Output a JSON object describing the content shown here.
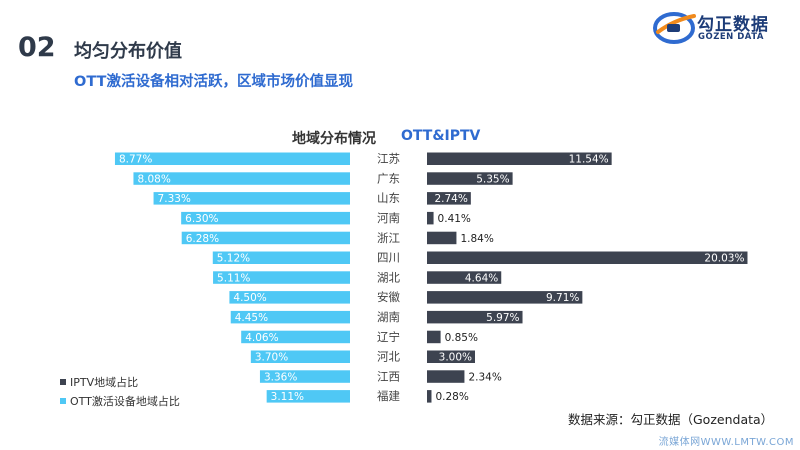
{
  "header": {
    "section_number": "02",
    "section_title": "均匀分布价值",
    "subtitle": "OTT激活设备相对活跃，区域市场价值显现"
  },
  "logo": {
    "name": "勾正数据",
    "sub": "GOZEN DATA"
  },
  "source": "数据来源：勾正数据（Gozendata）",
  "watermark": "流媒体网WWW.LMTW.COM",
  "colors": {
    "ott": "#4fc8f5",
    "iptv": "#3d4350",
    "label_text": "#ffffff"
  },
  "chart_data": {
    "type": "bar",
    "title": "地域分布情况",
    "title_tag": "OTT&IPTV",
    "categories": [
      "江苏",
      "广东",
      "山东",
      "河南",
      "浙江",
      "四川",
      "湖北",
      "安徽",
      "湖南",
      "辽宁",
      "河北",
      "江西",
      "福建"
    ],
    "series": [
      {
        "name": "OTT激活设备地域占比",
        "side": "left",
        "values": [
          8.77,
          8.08,
          7.33,
          6.3,
          6.28,
          5.12,
          5.11,
          4.5,
          4.45,
          4.06,
          3.7,
          3.36,
          3.11
        ],
        "labels": [
          "8.77%",
          "8.08%",
          "7.33%",
          "6.30%",
          "6.28%",
          "5.12%",
          "5.11%",
          "4.50%",
          "4.45%",
          "4.06%",
          "3.70%",
          "3.36%",
          "3.11%"
        ]
      },
      {
        "name": "IPTV地域占比",
        "side": "right",
        "values": [
          11.54,
          5.35,
          2.74,
          0.41,
          1.84,
          20.03,
          4.64,
          9.71,
          5.97,
          0.85,
          3.0,
          2.34,
          0.28
        ],
        "labels": [
          "11.54%",
          "5.35%",
          "2.74%",
          "0.41%",
          "1.84%",
          "20.03%",
          "4.64%",
          "9.71%",
          "5.97%",
          "0.85%",
          "3.00%",
          "2.34%",
          "0.28%"
        ]
      }
    ],
    "legend": [
      {
        "name": "IPTV地域占比",
        "color": "#3d4350"
      },
      {
        "name": "OTT激活设备地域占比",
        "color": "#4fc8f5"
      }
    ]
  }
}
